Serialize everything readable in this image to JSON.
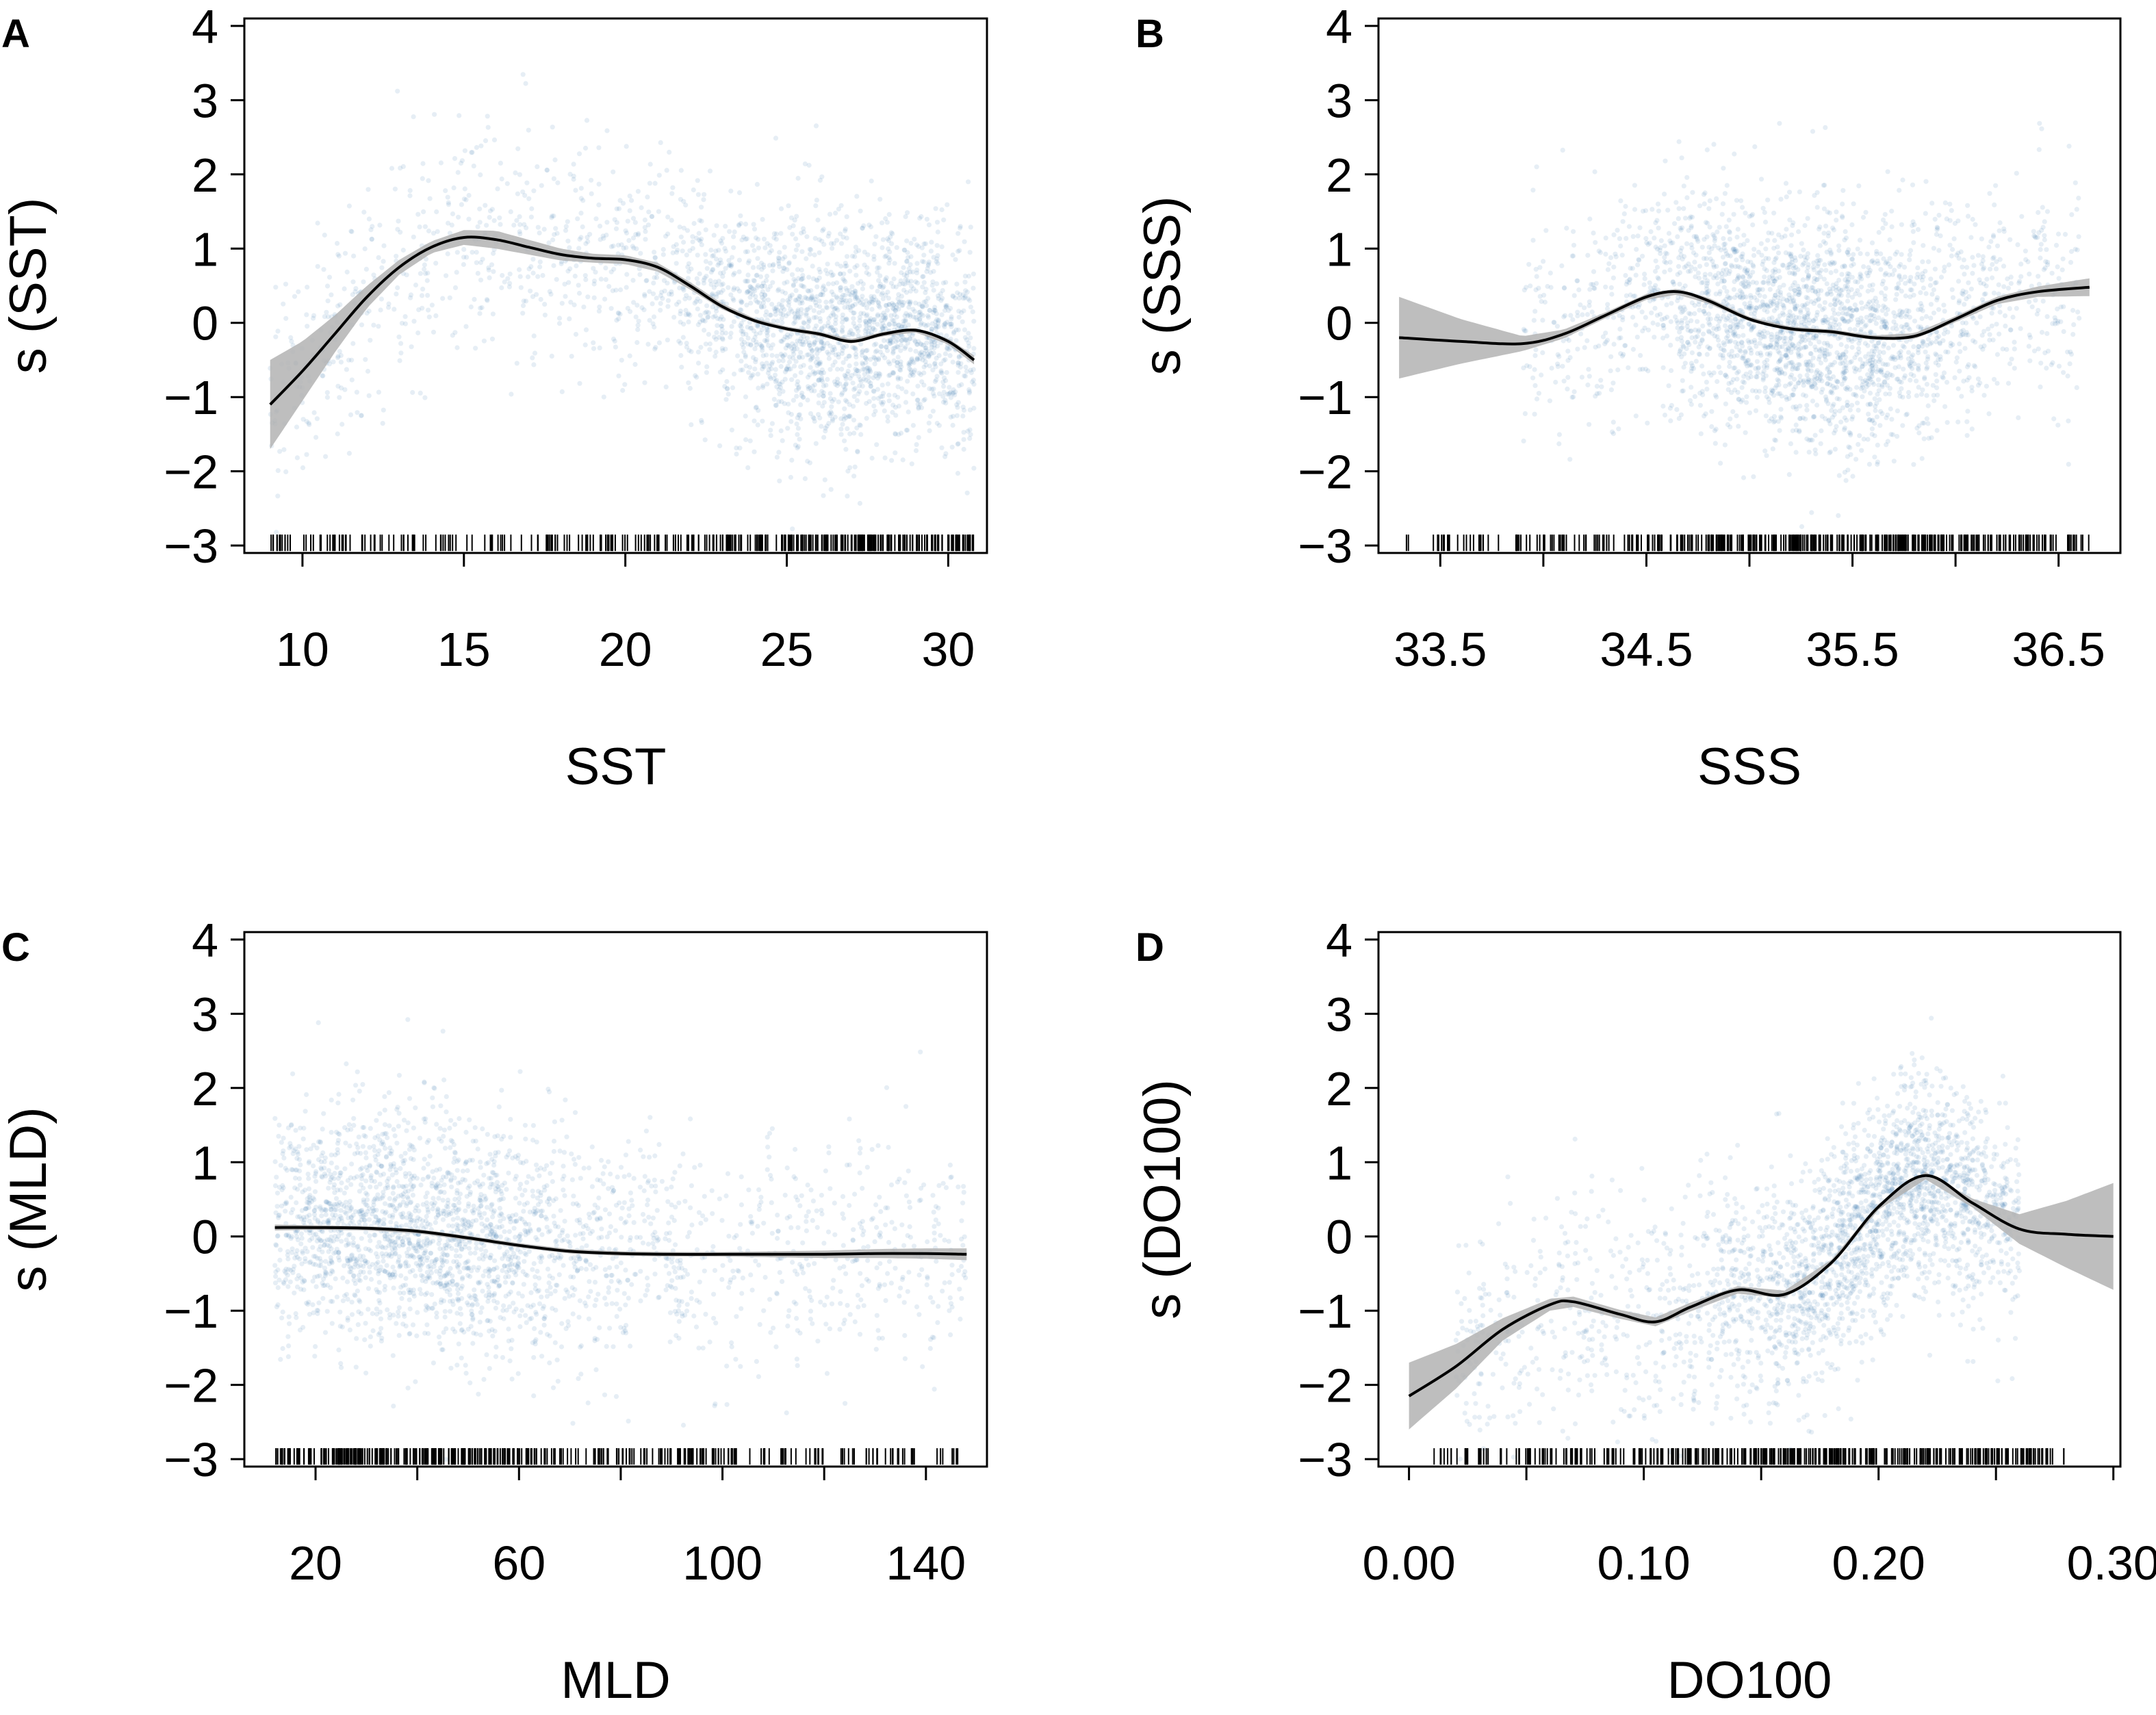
{
  "figure": {
    "description_colors": {
      "point": "#3a78b0",
      "band": "#b3b3b3",
      "line": "#000000",
      "frame": "#000000"
    }
  },
  "chart_data": [
    {
      "type": "scatter",
      "panel": "A",
      "title": "",
      "xlabel": "SST",
      "ylabel": "s (SST)",
      "xlim": [
        8.2,
        31.2
      ],
      "ylim": [
        -3.1,
        4.1
      ],
      "xticks": [
        10,
        15,
        20,
        25,
        30
      ],
      "xtick_labels": [
        "10",
        "15",
        "20",
        "25",
        "30"
      ],
      "yticks": [
        -3,
        -2,
        -1,
        0,
        1,
        2,
        3,
        4
      ],
      "ytick_labels": [
        "−3",
        "−2",
        "−1",
        "0",
        "1",
        "2",
        "3",
        "4"
      ],
      "grid": false,
      "rug_range": [
        9.0,
        30.8
      ],
      "rug_density_center": 27.5,
      "points_range": [
        9.0,
        30.8
      ],
      "points_density_center": 27.5,
      "series": [
        {
          "name": "smooth",
          "x": [
            9,
            10,
            11,
            12,
            13,
            14,
            15,
            16,
            17,
            18,
            19,
            20,
            21,
            22,
            23,
            24,
            25,
            26,
            27,
            28,
            29,
            30,
            30.8
          ],
          "values": [
            -1.1,
            -0.65,
            -0.15,
            0.35,
            0.75,
            1.02,
            1.15,
            1.12,
            1.02,
            0.92,
            0.87,
            0.85,
            0.75,
            0.5,
            0.22,
            0.03,
            -0.08,
            -0.15,
            -0.25,
            -0.15,
            -0.1,
            -0.25,
            -0.5
          ]
        },
        {
          "name": "ci_halfwidth",
          "x": [
            9,
            10,
            11,
            12,
            13,
            14,
            15,
            16,
            17,
            18,
            19,
            20,
            21,
            22,
            23,
            24,
            25,
            26,
            27,
            28,
            29,
            30,
            30.8
          ],
          "values": [
            0.6,
            0.4,
            0.25,
            0.15,
            0.1,
            0.08,
            0.1,
            0.12,
            0.1,
            0.08,
            0.06,
            0.06,
            0.06,
            0.05,
            0.04,
            0.03,
            0.03,
            0.03,
            0.03,
            0.03,
            0.03,
            0.04,
            0.06
          ]
        }
      ]
    },
    {
      "type": "scatter",
      "panel": "B",
      "title": "",
      "xlabel": "SSS",
      "ylabel": "s (SSS)",
      "xlim": [
        33.2,
        36.8
      ],
      "ylim": [
        -3.1,
        4.1
      ],
      "xticks": [
        33.5,
        34.0,
        34.5,
        35.0,
        35.5,
        36.0,
        36.5
      ],
      "xtick_labels": [
        "33.5",
        "",
        "34.5",
        "",
        "35.5",
        "",
        "36.5"
      ],
      "yticks": [
        -3,
        -2,
        -1,
        0,
        1,
        2,
        3,
        4
      ],
      "ytick_labels": [
        "−3",
        "−2",
        "−1",
        "0",
        "1",
        "2",
        "3",
        "4"
      ],
      "grid": false,
      "rug_range": [
        33.3,
        36.65
      ],
      "rug_density_center": 35.4,
      "points_range": [
        33.9,
        36.6
      ],
      "points_density_center": 35.3,
      "series": [
        {
          "name": "smooth",
          "x": [
            33.3,
            33.6,
            33.9,
            34.1,
            34.3,
            34.5,
            34.65,
            34.8,
            35.0,
            35.2,
            35.4,
            35.6,
            35.8,
            36.0,
            36.2,
            36.4,
            36.65
          ],
          "values": [
            -0.2,
            -0.25,
            -0.28,
            -0.15,
            0.1,
            0.35,
            0.42,
            0.3,
            0.05,
            -0.08,
            -0.12,
            -0.2,
            -0.18,
            0.05,
            0.3,
            0.42,
            0.48
          ]
        },
        {
          "name": "ci_halfwidth",
          "x": [
            33.3,
            33.6,
            33.9,
            34.1,
            34.3,
            34.5,
            34.65,
            34.8,
            35.0,
            35.2,
            35.4,
            35.6,
            35.8,
            36.0,
            36.2,
            36.4,
            36.65
          ],
          "values": [
            0.55,
            0.3,
            0.1,
            0.06,
            0.04,
            0.04,
            0.04,
            0.04,
            0.03,
            0.03,
            0.03,
            0.03,
            0.04,
            0.04,
            0.05,
            0.07,
            0.12
          ]
        }
      ]
    },
    {
      "type": "scatter",
      "panel": "C",
      "title": "",
      "xlabel": "MLD",
      "ylabel": "s (MLD)",
      "xlim": [
        6,
        152
      ],
      "ylim": [
        -3.1,
        4.1
      ],
      "xticks": [
        20,
        40,
        60,
        80,
        100,
        120,
        140
      ],
      "xtick_labels": [
        "20",
        "",
        "60",
        "",
        "100",
        "",
        "140"
      ],
      "yticks": [
        -3,
        -2,
        -1,
        0,
        1,
        2,
        3,
        4
      ],
      "ytick_labels": [
        "−3",
        "−2",
        "−1",
        "0",
        "1",
        "2",
        "3",
        "4"
      ],
      "grid": false,
      "rug_range": [
        12,
        148
      ],
      "rug_density_center": 40,
      "points_range": [
        12,
        148
      ],
      "points_density_center": 38,
      "series": [
        {
          "name": "smooth",
          "x": [
            12,
            20,
            30,
            40,
            50,
            60,
            70,
            80,
            90,
            100,
            110,
            120,
            130,
            140,
            148
          ],
          "values": [
            0.12,
            0.12,
            0.11,
            0.07,
            -0.02,
            -0.12,
            -0.2,
            -0.23,
            -0.24,
            -0.24,
            -0.24,
            -0.24,
            -0.23,
            -0.23,
            -0.24
          ]
        },
        {
          "name": "ci_halfwidth",
          "x": [
            12,
            20,
            30,
            40,
            50,
            60,
            70,
            80,
            90,
            100,
            110,
            120,
            130,
            140,
            148
          ],
          "values": [
            0.04,
            0.03,
            0.03,
            0.03,
            0.03,
            0.03,
            0.03,
            0.03,
            0.03,
            0.03,
            0.04,
            0.05,
            0.06,
            0.07,
            0.08
          ]
        }
      ]
    },
    {
      "type": "scatter",
      "panel": "D",
      "title": "",
      "xlabel": "DO100",
      "ylabel": "s (DO100)",
      "xlim": [
        -0.013,
        0.303
      ],
      "ylim": [
        -3.1,
        4.1
      ],
      "xticks": [
        0.0,
        0.05,
        0.1,
        0.15,
        0.2,
        0.25,
        0.3
      ],
      "xtick_labels": [
        "0.00",
        "",
        "0.10",
        "",
        "0.20",
        "",
        "0.30"
      ],
      "yticks": [
        -3,
        -2,
        -1,
        0,
        1,
        2,
        3,
        4
      ],
      "ytick_labels": [
        "−3",
        "−2",
        "−1",
        "0",
        "1",
        "2",
        "3",
        "4"
      ],
      "grid": false,
      "rug_range": [
        0.01,
        0.28
      ],
      "rug_density_center": 0.19,
      "points_range": [
        0.02,
        0.26
      ],
      "points_density_center": 0.2,
      "series": [
        {
          "name": "smooth",
          "x": [
            0.0,
            0.02,
            0.04,
            0.06,
            0.07,
            0.09,
            0.105,
            0.12,
            0.14,
            0.16,
            0.18,
            0.2,
            0.22,
            0.24,
            0.26,
            0.28,
            0.3
          ],
          "values": [
            -2.15,
            -1.75,
            -1.25,
            -0.92,
            -0.88,
            -1.05,
            -1.15,
            -0.95,
            -0.72,
            -0.78,
            -0.35,
            0.4,
            0.82,
            0.45,
            0.1,
            0.03,
            0.0
          ]
        },
        {
          "name": "ci_halfwidth",
          "x": [
            0.0,
            0.02,
            0.04,
            0.06,
            0.07,
            0.09,
            0.105,
            0.12,
            0.14,
            0.16,
            0.18,
            0.2,
            0.22,
            0.24,
            0.26,
            0.28,
            0.3
          ],
          "values": [
            0.45,
            0.3,
            0.15,
            0.08,
            0.07,
            0.06,
            0.06,
            0.06,
            0.05,
            0.05,
            0.04,
            0.04,
            0.05,
            0.06,
            0.2,
            0.45,
            0.72
          ]
        }
      ]
    }
  ]
}
